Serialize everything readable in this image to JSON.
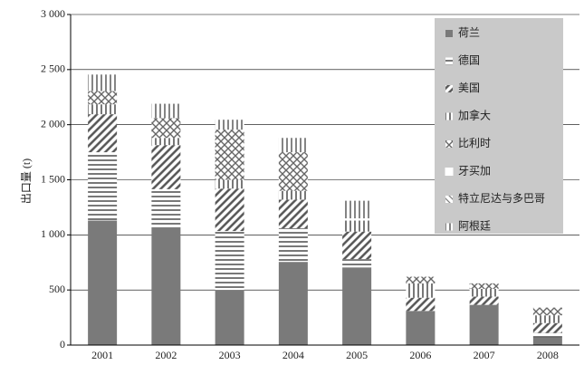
{
  "chart_data": {
    "type": "stacked_bar",
    "y_label": "出口量 (t)",
    "categories": [
      "2001",
      "2002",
      "2003",
      "2004",
      "2005",
      "2006",
      "2007",
      "2008"
    ],
    "series": [
      {
        "name": "荷兰",
        "color": "#7a7a7a",
        "values": [
          1130,
          1060,
          500,
          755,
          705,
          310,
          365,
          70
        ]
      },
      {
        "name": "德国",
        "color": "#555555",
        "values": [
          620,
          355,
          535,
          305,
          75,
          0,
          0,
          40
        ]
      },
      {
        "name": "美国",
        "color": "#555555",
        "values": [
          345,
          400,
          385,
          260,
          250,
          120,
          75,
          90
        ]
      },
      {
        "name": "加拿大",
        "color": "#555555",
        "values": [
          90,
          65,
          80,
          80,
          100,
          130,
          70,
          70
        ]
      },
      {
        "name": "比利时",
        "color": "#555555",
        "values": [
          120,
          180,
          455,
          350,
          0,
          60,
          50,
          70
        ]
      },
      {
        "name": "牙买加",
        "color": "#555555",
        "values": [
          0,
          0,
          0,
          0,
          20,
          0,
          0,
          0
        ]
      },
      {
        "name": "特立尼达与多巴哥",
        "color": "#555555",
        "values": [
          0,
          0,
          0,
          0,
          0,
          0,
          0,
          0
        ]
      },
      {
        "name": "阿根廷",
        "color": "#555555",
        "values": [
          150,
          130,
          90,
          130,
          160,
          0,
          0,
          0
        ]
      }
    ],
    "ylim": [
      0,
      3000
    ],
    "yticks": [
      0,
      500,
      {
        "value": 1000,
        "label": "1 000"
      },
      {
        "value": 1500,
        "label": "1 500"
      },
      {
        "value": 2000,
        "label": "2 000"
      },
      {
        "value": 2500,
        "label": "2 500"
      },
      {
        "value": 3000,
        "label": "3 000"
      }
    ],
    "grid": true
  }
}
